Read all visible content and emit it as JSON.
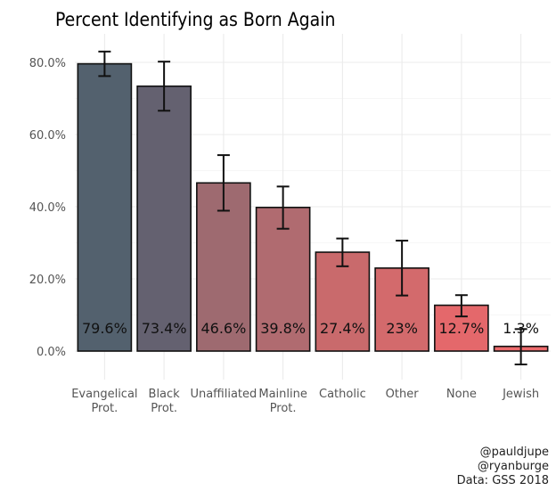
{
  "chart_data": {
    "type": "bar",
    "title": "Percent Identifying as Born Again",
    "xlabel": "",
    "ylabel": "",
    "ylim": [
      -8,
      86
    ],
    "yticks": [
      0,
      20,
      40,
      60,
      80
    ],
    "ytick_labels": [
      "0.0%",
      "20.0%",
      "40.0%",
      "60.0%",
      "80.0%"
    ],
    "grid": true,
    "categories": [
      "Evangelical\nProt.",
      "Black\nProt.",
      "Unaffiliated",
      "Mainline\nProt.",
      "Catholic",
      "Other",
      "None",
      "Jewish"
    ],
    "values": [
      79.6,
      73.4,
      46.6,
      39.8,
      27.4,
      23.0,
      12.7,
      1.3
    ],
    "data_labels": [
      "79.6%",
      "73.4%",
      "46.6%",
      "39.8%",
      "27.4%",
      "23%",
      "12.7%",
      "1.3%"
    ],
    "error_upper": [
      83.0,
      80.2,
      54.3,
      45.6,
      31.2,
      30.6,
      15.5,
      6.1
    ],
    "error_lower": [
      76.2,
      66.6,
      38.9,
      33.9,
      23.5,
      15.4,
      9.6,
      -3.7
    ],
    "colors": [
      "#53616e",
      "#646170",
      "#9e6a70",
      "#b06b70",
      "#c96a6c",
      "#d36a6c",
      "#e4686b",
      "#ec6a6c"
    ],
    "caption": [
      "@pauldjupe",
      "@ryanburge",
      "Data: GSS 2018"
    ]
  }
}
